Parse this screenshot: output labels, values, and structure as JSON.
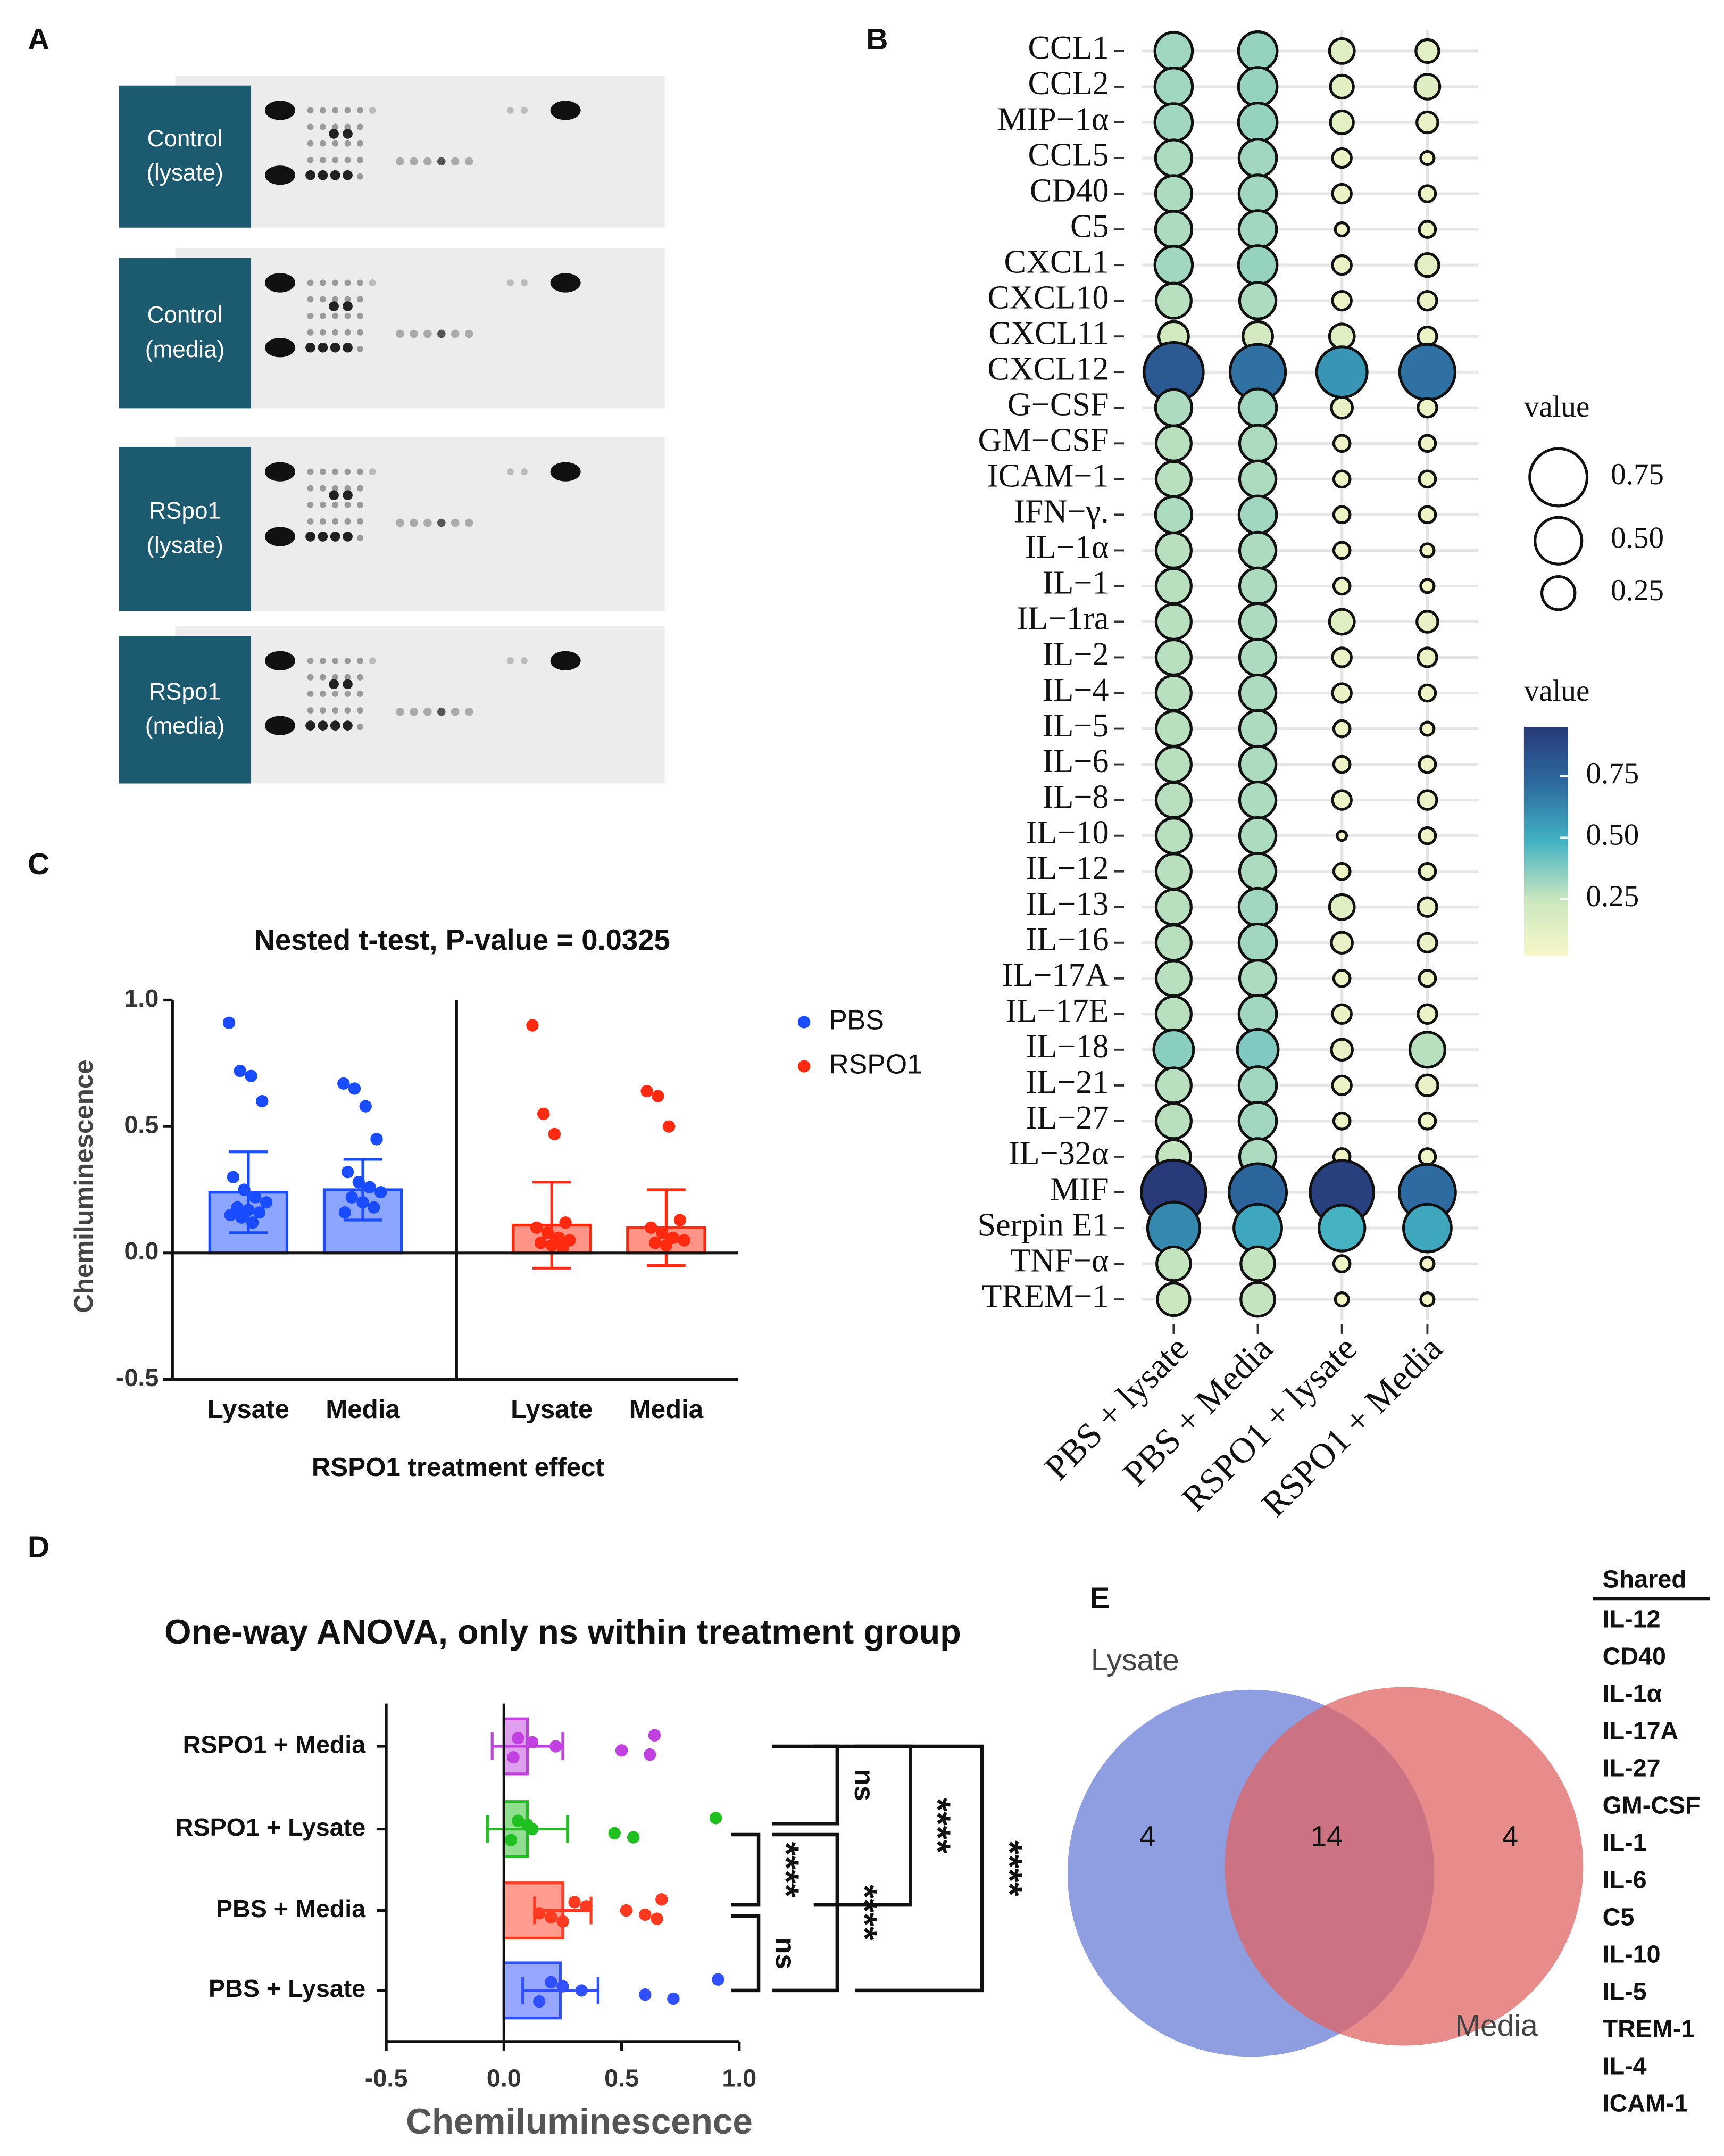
{
  "panel_labels": [
    "A",
    "B",
    "C",
    "D",
    "E"
  ],
  "blots": [
    [
      "Control",
      "(lysate)"
    ],
    [
      "Control",
      "(media)"
    ],
    [
      "RSpo1",
      "(lysate)"
    ],
    [
      "RSpo1",
      "(media)"
    ]
  ],
  "chart_data": [
    {
      "type": "dotplot",
      "y_categories": [
        "CCL1",
        "CCL2",
        "MIP−1α",
        "CCL5",
        "CD40",
        "C5",
        "CXCL1",
        "CXCL10",
        "CXCL11",
        "CXCL12",
        "G−CSF",
        "GM−CSF",
        "ICAM−1",
        "IFN−γ.",
        "IL−1α",
        "IL−1",
        "IL−1ra",
        "IL−2",
        "IL−4",
        "IL−5",
        "IL−6",
        "IL−8",
        "IL−10",
        "IL−12",
        "IL−13",
        "IL−16",
        "IL−17A",
        "IL−17E",
        "IL−18",
        "IL−21",
        "IL−27",
        "IL−32α",
        "MIF",
        "Serpin E1",
        "TNF−α",
        "TREM−1"
      ],
      "x_categories": [
        "PBS + lysate",
        "PBS + Media",
        "RSPO1 + lysate",
        "RSPO1 + Media"
      ],
      "values": [
        [
          0.32,
          0.34,
          0.14,
          0.12
        ],
        [
          0.32,
          0.34,
          0.12,
          0.14
        ],
        [
          0.32,
          0.34,
          0.12,
          0.1
        ],
        [
          0.3,
          0.32,
          0.08,
          0.04
        ],
        [
          0.3,
          0.32,
          0.08,
          0.06
        ],
        [
          0.3,
          0.32,
          0.04,
          0.06
        ],
        [
          0.32,
          0.34,
          0.08,
          0.12
        ],
        [
          0.28,
          0.3,
          0.08,
          0.08
        ],
        [
          0.2,
          0.2,
          0.14,
          0.08
        ],
        [
          0.8,
          0.7,
          0.58,
          0.7
        ],
        [
          0.3,
          0.32,
          0.1,
          0.08
        ],
        [
          0.28,
          0.3,
          0.06,
          0.06
        ],
        [
          0.28,
          0.3,
          0.06,
          0.06
        ],
        [
          0.3,
          0.32,
          0.06,
          0.06
        ],
        [
          0.28,
          0.3,
          0.06,
          0.04
        ],
        [
          0.28,
          0.3,
          0.06,
          0.04
        ],
        [
          0.28,
          0.3,
          0.14,
          0.1
        ],
        [
          0.28,
          0.3,
          0.08,
          0.08
        ],
        [
          0.28,
          0.3,
          0.08,
          0.06
        ],
        [
          0.28,
          0.3,
          0.06,
          0.04
        ],
        [
          0.28,
          0.3,
          0.06,
          0.06
        ],
        [
          0.28,
          0.3,
          0.08,
          0.08
        ],
        [
          0.28,
          0.3,
          0.02,
          0.06
        ],
        [
          0.28,
          0.3,
          0.06,
          0.06
        ],
        [
          0.28,
          0.32,
          0.14,
          0.08
        ],
        [
          0.28,
          0.32,
          0.1,
          0.08
        ],
        [
          0.28,
          0.3,
          0.06,
          0.06
        ],
        [
          0.28,
          0.32,
          0.08,
          0.08
        ],
        [
          0.36,
          0.38,
          0.1,
          0.28
        ],
        [
          0.28,
          0.32,
          0.08,
          0.1
        ],
        [
          0.28,
          0.32,
          0.06,
          0.06
        ],
        [
          0.26,
          0.3,
          0.06,
          0.06
        ],
        [
          0.95,
          0.75,
          0.92,
          0.72
        ],
        [
          0.62,
          0.52,
          0.48,
          0.52
        ],
        [
          0.26,
          0.26,
          0.06,
          0.04
        ],
        [
          0.24,
          0.26,
          0.04,
          0.04
        ]
      ],
      "size_legend_title": "value",
      "size_legend": [
        0.75,
        {
          "value": 0.5,
          "label": "0.50"
        },
        0.25
      ],
      "colorbar_title": "value",
      "colorbar_ticks": [
        0.25,
        {
          "value": 0.5,
          "label": "0.50"
        },
        0.75
      ],
      "clim": [
        0.02,
        0.95
      ],
      "colormap": [
        "#f7f7c8",
        "#c8e6bf",
        "#42b2c2",
        "#2d6ca0",
        "#283a7a"
      ],
      "grid": true
    },
    {
      "type": "bar",
      "title": "Nested t-test, P-value = 0.0325",
      "ylabel": "Chemiluminescence",
      "xlabel": "RSPO1 treatment effect",
      "categories": [
        "Lysate",
        "Media",
        "Lysate",
        "Media"
      ],
      "ylim": [
        -0.5,
        1.0
      ],
      "yticks": [
        -0.5,
        {
          "value": 0,
          "label": "0.0"
        },
        0.5,
        {
          "value": 1,
          "label": "1.0"
        }
      ],
      "legend": "right",
      "series": [
        {
          "name": "PBS",
          "color": "#1a4cff",
          "values": [
            0.24,
            0.25,
            null,
            null
          ],
          "errors": [
            0.16,
            0.12,
            null,
            null
          ],
          "points": [
            [
              0.91,
              0.72,
              0.7,
              0.6,
              0.3,
              0.25,
              0.22,
              0.2,
              0.18,
              0.17,
              0.16,
              0.15,
              0.14,
              0.12
            ],
            [
              0.67,
              0.65,
              0.58,
              0.45,
              0.32,
              0.28,
              0.26,
              0.24,
              0.22,
              0.2,
              0.18,
              0.16
            ],
            null,
            null
          ]
        },
        {
          "name": "RSPO1",
          "color": "#ff2a10",
          "values": [
            null,
            null,
            0.11,
            0.1
          ],
          "errors": [
            null,
            null,
            0.17,
            0.15
          ],
          "points": [
            null,
            null,
            [
              0.9,
              0.55,
              0.47,
              0.12,
              0.1,
              0.08,
              0.06,
              0.05,
              0.04,
              0.03,
              0.02
            ],
            [
              0.64,
              0.62,
              0.5,
              0.13,
              0.1,
              0.08,
              0.06,
              0.05,
              0.04,
              0.03
            ]
          ]
        }
      ]
    },
    {
      "type": "hbar",
      "title": "One-way ANOVA, only ns within treatment group",
      "xlabel": "Chemiluminescence",
      "categories": [
        "RSPO1 + Media",
        "RSPO1 + Lysate",
        "PBS + Media",
        "PBS + Lysate"
      ],
      "values": [
        0.1,
        0.1,
        0.25,
        0.24
      ],
      "errors": [
        0.15,
        0.17,
        0.12,
        0.16
      ],
      "colors": [
        "#c040e0",
        "#20c020",
        "#ff3a20",
        "#3050ff"
      ],
      "points": [
        [
          0.64,
          0.62,
          0.5,
          0.22,
          0.12,
          0.06,
          0.04
        ],
        [
          0.9,
          0.55,
          0.47,
          0.12,
          0.1,
          0.06,
          0.03
        ],
        [
          0.67,
          0.65,
          0.6,
          0.52,
          0.35,
          0.3,
          0.25,
          0.2,
          0.15
        ],
        [
          0.91,
          0.72,
          0.6,
          0.33,
          0.25,
          0.2,
          0.15
        ]
      ],
      "xlim": [
        -0.5,
        1.0
      ],
      "xticks": [
        -0.5,
        {
          "value": 0,
          "label": "0.0"
        },
        0.5,
        {
          "value": 1,
          "label": "1.0"
        }
      ],
      "comparisons": [
        {
          "pair": [
            0,
            1
          ],
          "label": "ns"
        },
        {
          "pair": [
            1,
            2
          ],
          "label": "****"
        },
        {
          "pair": [
            2,
            3
          ],
          "label": "ns"
        },
        {
          "pair": [
            0,
            2
          ],
          "label": "****"
        },
        {
          "pair": [
            1,
            3
          ],
          "label": "****"
        },
        {
          "pair": [
            0,
            3
          ],
          "label": "****"
        }
      ]
    },
    {
      "type": "venn",
      "sets": [
        {
          "name": "Lysate",
          "color": "#6a7ed6",
          "only": 4
        },
        {
          "name": "Media",
          "color": "#e06464",
          "only": 4
        }
      ],
      "intersection": 14,
      "list_title": "Shared",
      "list": [
        "IL-12",
        "CD40",
        "IL-1α",
        "IL-17A",
        "IL-27",
        "GM-CSF",
        "IL-1",
        "IL-6",
        "C5",
        "IL-10",
        "IL-5",
        "TREM-1",
        "IL-4",
        "ICAM-1"
      ]
    }
  ]
}
